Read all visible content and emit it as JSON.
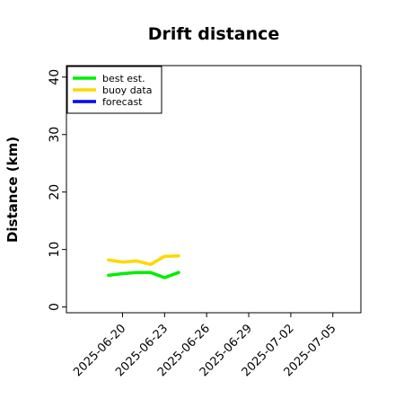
{
  "chart_data": {
    "type": "line",
    "title": "Drift distance",
    "xlabel": "",
    "ylabel": "Distance (km)",
    "xlim": [
      "2025-06-16",
      "2025-07-07"
    ],
    "ylim": [
      -1,
      42
    ],
    "yticks": [
      0,
      10,
      20,
      30,
      40
    ],
    "xticks": [
      "2025-06-20",
      "2025-06-23",
      "2025-06-26",
      "2025-06-29",
      "2025-07-02",
      "2025-07-05"
    ],
    "highlight_tick": "2025-06-26",
    "legend_position": "top-left",
    "grid": false,
    "series": [
      {
        "name": "best est.",
        "color": "#00ee00",
        "x": [
          "2025-06-19",
          "2025-06-20",
          "2025-06-21",
          "2025-06-22",
          "2025-06-23",
          "2025-06-24"
        ],
        "y": [
          5.5,
          5.8,
          6.0,
          6.0,
          5.1,
          6.0
        ]
      },
      {
        "name": "buoy data",
        "color": "#ffd700",
        "x": [
          "2025-06-19",
          "2025-06-20",
          "2025-06-21",
          "2025-06-22",
          "2025-06-23",
          "2025-06-24"
        ],
        "y": [
          8.2,
          7.8,
          8.0,
          7.4,
          8.8,
          8.9
        ]
      },
      {
        "name": "forecast",
        "color": "#0000ff",
        "x": [],
        "y": []
      }
    ],
    "colors": {
      "highlight_tick": "#228b22",
      "axis": "#000000"
    }
  }
}
